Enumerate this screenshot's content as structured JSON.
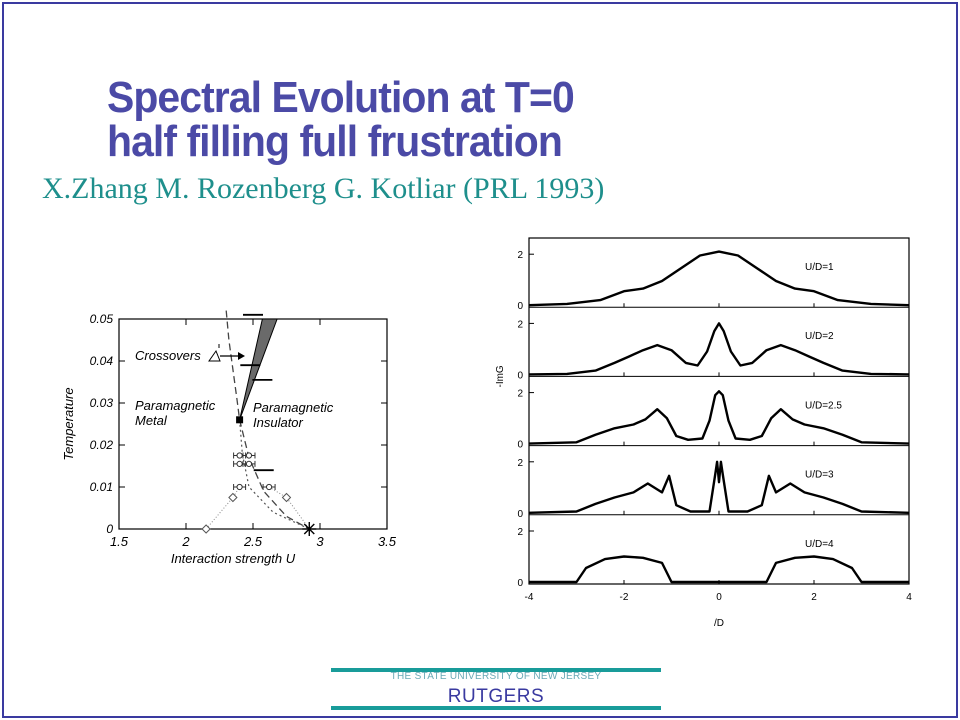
{
  "slide": {
    "title_line1": "Spectral Evolution at T=0",
    "title_line2": "half filling full frustration",
    "subtitle": "X.Zhang M. Rozenberg G. Kotliar (PRL 1993)",
    "footer_small": "THE STATE UNIVERSITY OF NEW JERSEY",
    "footer_big": "RUTGERS"
  },
  "chart_data": [
    {
      "type": "scatter",
      "xlabel": "Interaction strength U",
      "ylabel": "Temperature",
      "xlim": [
        1.5,
        3.5
      ],
      "ylim": [
        0,
        0.05
      ],
      "xticks": [
        "1.5",
        "2",
        "2.5",
        "3",
        "3.5"
      ],
      "yticks": [
        "0",
        "0.01",
        "0.02",
        "0.03",
        "0.04",
        "0.05"
      ],
      "annotations": [
        "Crossovers",
        "Paramagnetic",
        "Metal",
        "Paramagnetic",
        "Insulator"
      ],
      "critical_point": {
        "x": 2.4,
        "y": 0.026
      },
      "zero_T_point": {
        "x": 2.92,
        "y": 0
      },
      "coexistence_region": [
        [
          2.4,
          0.026
        ],
        [
          2.57,
          0.05
        ],
        [
          2.68,
          0.05
        ]
      ],
      "diamonds": [
        {
          "x": 2.15,
          "y": 0
        },
        {
          "x": 2.35,
          "y": 0.0075
        },
        {
          "x": 2.75,
          "y": 0.0075
        }
      ],
      "circles_with_errorbars": [
        {
          "x": 2.4,
          "y": 0.0155
        },
        {
          "x": 2.47,
          "y": 0.0155
        },
        {
          "x": 2.4,
          "y": 0.0175
        },
        {
          "x": 2.47,
          "y": 0.0175
        },
        {
          "x": 2.4,
          "y": 0.01
        },
        {
          "x": 2.62,
          "y": 0.01
        }
      ],
      "crossover_markers": [
        {
          "x": 2.5,
          "y": 0.051
        },
        {
          "x": 2.48,
          "y": 0.039
        },
        {
          "x": 2.57,
          "y": 0.0355
        },
        {
          "x": 2.58,
          "y": 0.014
        }
      ],
      "series": [
        {
          "points": [
            [
              2.3,
              0.052
            ],
            [
              2.32,
              0.045
            ],
            [
              2.35,
              0.038
            ],
            [
              2.38,
              0.031
            ],
            [
              2.4,
              0.026
            ],
            [
              2.47,
              0.017
            ],
            [
              2.58,
              0.009
            ],
            [
              2.75,
              0.003
            ],
            [
              2.92,
              0.0
            ]
          ]
        },
        {
          "points": [
            [
              2.4,
              0.026
            ],
            [
              2.42,
              0.018
            ],
            [
              2.47,
              0.01
            ],
            [
              2.65,
              0.004
            ],
            [
              2.92,
              0.0
            ]
          ]
        },
        {
          "points": [
            [
              2.15,
              0.0
            ],
            [
              2.35,
              0.0075
            ],
            [
              2.4,
              0.01
            ]
          ]
        },
        {
          "points": [
            [
              2.62,
              0.01
            ],
            [
              2.75,
              0.0075
            ],
            [
              2.92,
              0.0
            ]
          ]
        }
      ]
    },
    {
      "type": "line",
      "xlabel": "/D",
      "ylabel": "-ImG",
      "xlim": [
        -4,
        4
      ],
      "xticks": [
        "-4",
        "-2",
        "0",
        "2",
        "4"
      ],
      "panel_yticks": [
        "0",
        "2"
      ],
      "panel_ylim": [
        0,
        2.4
      ],
      "panels": [
        {
          "label": "U/D=1",
          "x": [
            -4,
            -3.2,
            -2.5,
            -2,
            -1.6,
            -1.2,
            -0.8,
            -0.4,
            0,
            0.4,
            0.8,
            1.2,
            1.6,
            2,
            2.5,
            3.2,
            4
          ],
          "y": [
            0,
            0.05,
            0.2,
            0.55,
            0.65,
            0.95,
            1.45,
            1.95,
            2.1,
            1.95,
            1.45,
            0.95,
            0.65,
            0.55,
            0.2,
            0.05,
            0
          ]
        },
        {
          "label": "U/D=2",
          "x": [
            -4,
            -3.2,
            -2.6,
            -2.2,
            -1.9,
            -1.6,
            -1.3,
            -1.0,
            -0.7,
            -0.45,
            -0.25,
            -0.1,
            0,
            0.1,
            0.25,
            0.45,
            0.7,
            1.0,
            1.3,
            1.6,
            1.9,
            2.2,
            2.6,
            3.2,
            4
          ],
          "y": [
            0,
            0.02,
            0.15,
            0.45,
            0.7,
            0.95,
            1.15,
            0.95,
            0.45,
            0.35,
            0.9,
            1.7,
            2.0,
            1.7,
            0.9,
            0.35,
            0.45,
            0.95,
            1.15,
            0.95,
            0.7,
            0.45,
            0.15,
            0.02,
            0
          ]
        },
        {
          "label": "U/D=2.5",
          "x": [
            -4,
            -3.0,
            -2.6,
            -2.2,
            -1.8,
            -1.55,
            -1.3,
            -1.1,
            -0.9,
            -0.65,
            -0.35,
            -0.2,
            -0.08,
            0,
            0.08,
            0.2,
            0.35,
            0.65,
            0.9,
            1.1,
            1.3,
            1.55,
            1.8,
            2.2,
            2.6,
            3.0,
            4
          ],
          "y": [
            0,
            0.05,
            0.35,
            0.6,
            0.75,
            0.95,
            1.35,
            1.0,
            0.3,
            0.15,
            0.2,
            0.9,
            1.9,
            2.05,
            1.9,
            0.9,
            0.2,
            0.15,
            0.3,
            1.0,
            1.35,
            0.95,
            0.75,
            0.6,
            0.35,
            0.05,
            0
          ]
        },
        {
          "label": "U/D=3",
          "x": [
            -4,
            -3.0,
            -2.6,
            -2.2,
            -1.8,
            -1.5,
            -1.2,
            -1.05,
            -0.9,
            -0.6,
            -0.2,
            -0.08,
            -0.04,
            0,
            0.04,
            0.08,
            0.2,
            0.6,
            0.9,
            1.05,
            1.2,
            1.5,
            1.8,
            2.2,
            2.6,
            3.0,
            4
          ],
          "y": [
            0,
            0.05,
            0.35,
            0.6,
            0.8,
            1.15,
            0.8,
            1.45,
            0.3,
            0.05,
            0.05,
            1.5,
            2.0,
            1.2,
            2.0,
            1.5,
            0.05,
            0.05,
            0.3,
            1.45,
            0.8,
            1.15,
            0.8,
            0.6,
            0.35,
            0.05,
            0
          ]
        },
        {
          "label": "U/D=4",
          "x": [
            -4,
            -3.0,
            -2.8,
            -2.4,
            -2.0,
            -1.6,
            -1.2,
            -1.0,
            1.0,
            1.2,
            1.6,
            2.0,
            2.4,
            2.8,
            3.0,
            4
          ],
          "y": [
            0,
            0,
            0.55,
            0.9,
            1.0,
            0.95,
            0.75,
            0,
            0,
            0.75,
            0.95,
            1.0,
            0.9,
            0.55,
            0,
            0
          ]
        }
      ]
    }
  ]
}
